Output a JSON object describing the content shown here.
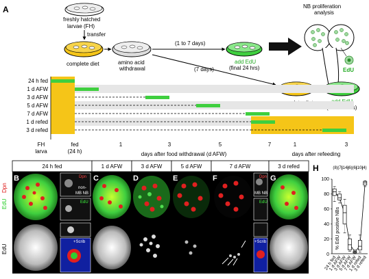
{
  "panel_a": {
    "letter": "A",
    "fh_larvae": "freshly hatched",
    "fh_larvae2": "larvae (FH)",
    "transfer": "transfer",
    "complete_diet": "complete diet",
    "aa_withdrawal_1": "amino acid",
    "aa_withdrawal_2": "withdrawal",
    "arrow_1to7": "(1 to 7 days)",
    "arrow_7": "(7 days)",
    "add_edu_1": "add EdU",
    "final_24": "(final 24 hrs)",
    "nb_analysis_1": "NB proliferation",
    "nb_analysis_2": "analysis",
    "edu_small": "EdU",
    "complete_diet_2": "complete diet",
    "add_edu_2": "add EdU",
    "final_24_2": "(final 24 hrs)",
    "rows": [
      "24 h fed",
      "1 d AFW",
      "3 d AFW",
      "5 d AFW",
      "7 d AFW",
      "1 d refed",
      "3 d refed"
    ],
    "axis": {
      "fh": "FH",
      "larva": "larva",
      "fed": "fed",
      "fed24": "(24 h)",
      "t1": "1",
      "t3": "3",
      "t5": "5",
      "t7": "7",
      "r1": "1",
      "r3": "3",
      "days_afw": "days after food withdrawal (d AFW)",
      "days_refeed": "days after refeeding"
    }
  },
  "panels_b_g": {
    "headers": [
      "24 h fed",
      "1 d AFW",
      "3 d AFW",
      "5 d AFW",
      "7 d AFW",
      "3 d refed"
    ],
    "letters": [
      "B",
      "C",
      "D",
      "E",
      "F",
      "G"
    ],
    "side_edu": "EdU",
    "side_dpn": "Dpn",
    "side_edu2": "EdU",
    "inset_dpn": "Dpn",
    "inset_non": "non-",
    "inset_mbnb": "MB NB",
    "inset_edu": "EdU",
    "inset_scrib": "+Scrib",
    "inset_mbnb_f": "MB NB",
    "inset_dpn_f": "Dpn",
    "inset_edu_f": "EdU",
    "inset_scrib_f": "+Scrib"
  },
  "panel_h": {
    "letter": "H",
    "ylabel": "% EdU positive NBs",
    "ticks": [
      "0",
      "20",
      "40",
      "60",
      "80",
      "100"
    ],
    "counts": [
      "(8)",
      "(7)",
      "(14)",
      "(6)",
      "(6)",
      "(10)",
      "(4)"
    ]
  },
  "chart_data": {
    "type": "box",
    "title": "",
    "xlabel": "",
    "ylabel": "% EdU positive NBs",
    "ylim": [
      0,
      100
    ],
    "categories": [
      "24 h fed",
      "1 d AFW",
      "3 d AFW",
      "5 d AFW",
      "7 d AFW",
      "1 d refed",
      "3 d refed"
    ],
    "n": [
      8,
      7,
      14,
      6,
      6,
      10,
      4
    ],
    "median": [
      83,
      75,
      55,
      12,
      2,
      10,
      95
    ],
    "q1": [
      78,
      72,
      40,
      5,
      1,
      5,
      92
    ],
    "q3": [
      87,
      80,
      65,
      20,
      3,
      18,
      97
    ],
    "whisker_low": [
      70,
      68,
      28,
      3,
      0,
      2,
      90
    ],
    "whisker_high": [
      90,
      83,
      73,
      25,
      5,
      25,
      98
    ],
    "mean_line": [
      83,
      75,
      53,
      13,
      2,
      11,
      95
    ]
  },
  "colors": {
    "yellow": "#f5c518",
    "green": "#3fcf3f",
    "grey_band": "#e6e6e6"
  }
}
